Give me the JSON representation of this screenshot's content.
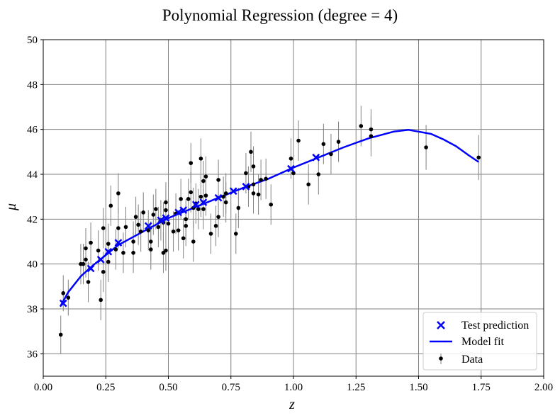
{
  "chart_data": {
    "type": "scatter",
    "title": "Polynomial Regression (degree = 4)",
    "xlabel": "z",
    "ylabel": "μ",
    "xlim": [
      0.0,
      2.0
    ],
    "ylim": [
      35,
      50
    ],
    "xticks": [
      "0.00",
      "0.25",
      "0.50",
      "0.75",
      "1.00",
      "1.25",
      "1.50",
      "1.75",
      "2.00"
    ],
    "yticks": [
      "36",
      "38",
      "40",
      "42",
      "44",
      "46",
      "48",
      "50"
    ],
    "grid": true,
    "legend_position": "bottom-right",
    "series": [
      {
        "name": "Data",
        "kind": "errorbar-points",
        "color": "#000000",
        "errorbar_color": "#808080",
        "points": [
          [
            0.07,
            36.85,
            0.85
          ],
          [
            0.08,
            38.7,
            0.8
          ],
          [
            0.1,
            38.5,
            0.8
          ],
          [
            0.15,
            40.0,
            0.9
          ],
          [
            0.16,
            40.0,
            0.9
          ],
          [
            0.17,
            40.2,
            0.8
          ],
          [
            0.17,
            40.7,
            0.9
          ],
          [
            0.18,
            39.2,
            0.9
          ],
          [
            0.19,
            40.95,
            0.9
          ],
          [
            0.22,
            40.6,
            0.9
          ],
          [
            0.23,
            38.4,
            0.9
          ],
          [
            0.24,
            39.65,
            0.9
          ],
          [
            0.24,
            41.6,
            0.9
          ],
          [
            0.26,
            40.9,
            0.9
          ],
          [
            0.26,
            40.1,
            0.9
          ],
          [
            0.27,
            42.6,
            0.9
          ],
          [
            0.29,
            40.65,
            0.9
          ],
          [
            0.3,
            41.6,
            0.9
          ],
          [
            0.3,
            43.15,
            0.9
          ],
          [
            0.32,
            40.5,
            0.9
          ],
          [
            0.33,
            41.65,
            0.9
          ],
          [
            0.36,
            41.0,
            0.9
          ],
          [
            0.36,
            40.5,
            0.9
          ],
          [
            0.37,
            42.1,
            0.9
          ],
          [
            0.38,
            41.75,
            0.9
          ],
          [
            0.39,
            41.45,
            0.9
          ],
          [
            0.4,
            42.3,
            0.9
          ],
          [
            0.42,
            41.5,
            0.9
          ],
          [
            0.43,
            41.0,
            0.9
          ],
          [
            0.43,
            40.65,
            0.9
          ],
          [
            0.44,
            42.2,
            0.9
          ],
          [
            0.45,
            42.45,
            0.9
          ],
          [
            0.46,
            41.65,
            0.9
          ],
          [
            0.47,
            41.95,
            0.9
          ],
          [
            0.48,
            41.85,
            0.9
          ],
          [
            0.48,
            40.5,
            0.9
          ],
          [
            0.49,
            40.6,
            0.9
          ],
          [
            0.49,
            42.75,
            0.9
          ],
          [
            0.49,
            42.4,
            0.9
          ],
          [
            0.5,
            41.8,
            0.9
          ],
          [
            0.52,
            41.45,
            0.9
          ],
          [
            0.53,
            42.25,
            0.9
          ],
          [
            0.54,
            41.5,
            0.9
          ],
          [
            0.55,
            42.9,
            0.9
          ],
          [
            0.56,
            41.15,
            0.9
          ],
          [
            0.57,
            41.7,
            0.9
          ],
          [
            0.57,
            42.0,
            0.9
          ],
          [
            0.58,
            42.9,
            0.9
          ],
          [
            0.59,
            44.5,
            0.9
          ],
          [
            0.59,
            43.2,
            0.9
          ],
          [
            0.6,
            41.0,
            0.9
          ],
          [
            0.6,
            42.5,
            0.9
          ],
          [
            0.61,
            42.7,
            0.9
          ],
          [
            0.62,
            42.45,
            0.9
          ],
          [
            0.63,
            43.0,
            0.9
          ],
          [
            0.63,
            44.7,
            0.9
          ],
          [
            0.64,
            42.45,
            0.9
          ],
          [
            0.64,
            43.7,
            0.9
          ],
          [
            0.65,
            43.05,
            0.9
          ],
          [
            0.65,
            43.9,
            0.9
          ],
          [
            0.67,
            41.35,
            0.9
          ],
          [
            0.69,
            41.7,
            0.9
          ],
          [
            0.7,
            42.1,
            0.9
          ],
          [
            0.7,
            43.75,
            0.9
          ],
          [
            0.72,
            43.0,
            0.9
          ],
          [
            0.73,
            42.75,
            0.9
          ],
          [
            0.73,
            43.15,
            0.9
          ],
          [
            0.77,
            41.35,
            0.9
          ],
          [
            0.78,
            42.5,
            0.9
          ],
          [
            0.81,
            44.05,
            0.9
          ],
          [
            0.82,
            43.45,
            0.9
          ],
          [
            0.83,
            45.0,
            0.9
          ],
          [
            0.84,
            43.55,
            0.9
          ],
          [
            0.84,
            44.35,
            0.9
          ],
          [
            0.84,
            43.15,
            0.9
          ],
          [
            0.86,
            43.1,
            0.9
          ],
          [
            0.87,
            43.75,
            0.9
          ],
          [
            0.89,
            43.8,
            0.9
          ],
          [
            0.91,
            42.65,
            0.9
          ],
          [
            0.99,
            44.7,
            0.9
          ],
          [
            1.0,
            44.05,
            0.9
          ],
          [
            1.02,
            45.5,
            0.9
          ],
          [
            1.06,
            43.55,
            0.9
          ],
          [
            1.1,
            44.0,
            0.9
          ],
          [
            1.12,
            45.35,
            0.9
          ],
          [
            1.15,
            44.9,
            0.9
          ],
          [
            1.18,
            45.45,
            0.9
          ],
          [
            1.27,
            46.15,
            0.9
          ],
          [
            1.31,
            45.7,
            0.9
          ],
          [
            1.31,
            46.0,
            0.9
          ],
          [
            1.53,
            45.2,
            1.0
          ],
          [
            1.74,
            44.75,
            1.0
          ]
        ]
      },
      {
        "name": "Test prediction",
        "kind": "markers",
        "marker": "x",
        "color": "#0000ff",
        "points": [
          [
            0.08,
            38.25
          ],
          [
            0.19,
            39.8
          ],
          [
            0.23,
            40.2
          ],
          [
            0.26,
            40.55
          ],
          [
            0.3,
            40.95
          ],
          [
            0.42,
            41.7
          ],
          [
            0.47,
            41.95
          ],
          [
            0.49,
            42.05
          ],
          [
            0.54,
            42.3
          ],
          [
            0.56,
            42.4
          ],
          [
            0.61,
            42.65
          ],
          [
            0.64,
            42.75
          ],
          [
            0.7,
            42.95
          ],
          [
            0.76,
            43.25
          ],
          [
            0.81,
            43.45
          ],
          [
            0.99,
            44.25
          ],
          [
            1.09,
            44.75
          ]
        ]
      },
      {
        "name": "Model fit",
        "kind": "line",
        "color": "#0000ff",
        "points": [
          [
            0.07,
            38.15
          ],
          [
            0.1,
            38.75
          ],
          [
            0.15,
            39.45
          ],
          [
            0.2,
            39.95
          ],
          [
            0.25,
            40.4
          ],
          [
            0.3,
            40.85
          ],
          [
            0.4,
            41.45
          ],
          [
            0.5,
            42.05
          ],
          [
            0.6,
            42.5
          ],
          [
            0.7,
            42.95
          ],
          [
            0.8,
            43.4
          ],
          [
            0.9,
            43.8
          ],
          [
            1.0,
            44.3
          ],
          [
            1.1,
            44.75
          ],
          [
            1.2,
            45.2
          ],
          [
            1.3,
            45.6
          ],
          [
            1.4,
            45.9
          ],
          [
            1.46,
            45.98
          ],
          [
            1.5,
            45.9
          ],
          [
            1.55,
            45.8
          ],
          [
            1.6,
            45.55
          ],
          [
            1.65,
            45.25
          ],
          [
            1.7,
            44.85
          ],
          [
            1.74,
            44.55
          ]
        ]
      }
    ]
  }
}
